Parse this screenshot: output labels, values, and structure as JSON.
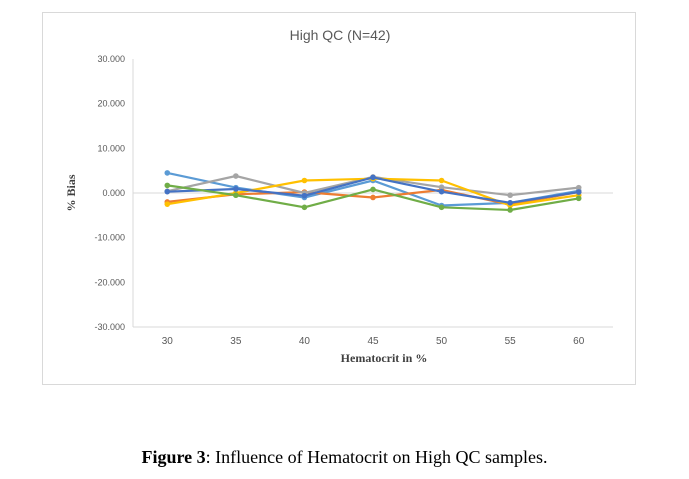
{
  "chart_data": {
    "type": "line",
    "title": "High  QC (N=42)",
    "xlabel": "Hematocrit  in  %",
    "ylabel": "% Bias",
    "x": [
      30,
      35,
      40,
      45,
      50,
      55,
      60
    ],
    "x_tick_labels": [
      "30",
      "35",
      "40",
      "45",
      "50",
      "55",
      "60"
    ],
    "ylim": [
      -30,
      30
    ],
    "y_ticks": [
      30,
      20,
      10,
      0,
      -10,
      -20,
      -30
    ],
    "y_tick_labels": [
      "30.000",
      "20.000",
      "10.000",
      "0.000",
      "-10.000",
      "-20.000",
      "-30.000"
    ],
    "grid": false,
    "legend": "none",
    "series": [
      {
        "color": "#5b9bd5",
        "values": [
          4.5,
          1.2,
          -1.0,
          2.8,
          -2.8,
          -2.2,
          0.5
        ]
      },
      {
        "color": "#ed7d31",
        "values": [
          -2.0,
          -0.3,
          0.2,
          -1.0,
          0.7,
          -2.6,
          0.2
        ]
      },
      {
        "color": "#a5a5a5",
        "values": [
          0.4,
          3.8,
          0.0,
          3.6,
          1.3,
          -0.5,
          1.2
        ]
      },
      {
        "color": "#ffc000",
        "values": [
          -2.5,
          0.0,
          2.8,
          3.2,
          2.8,
          -2.8,
          -0.5
        ]
      },
      {
        "color": "#4472c4",
        "values": [
          0.3,
          0.9,
          -0.6,
          3.5,
          0.3,
          -2.2,
          0.2
        ]
      },
      {
        "color": "#70ad47",
        "values": [
          1.7,
          -0.5,
          -3.2,
          0.8,
          -3.2,
          -3.8,
          -1.2
        ]
      }
    ]
  },
  "caption": {
    "label": "Figure 3",
    "text": ": Influence of Hematocrit on High QC samples."
  }
}
